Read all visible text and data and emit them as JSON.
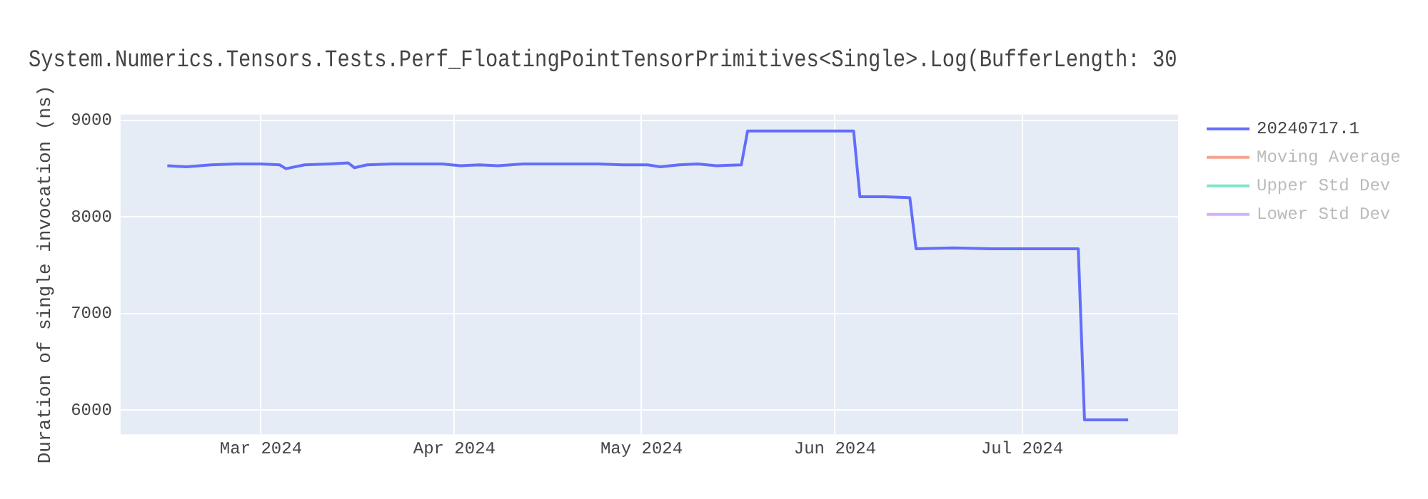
{
  "chart_data": {
    "type": "line",
    "title": "System.Numerics.Tensors.Tests.Perf_FloatingPointTensorPrimitives<Single>.Log(BufferLength: 30",
    "ylabel": "Duration of single invocation (ns)",
    "series": [
      {
        "name": "20240717.1",
        "color": "#636efa",
        "x": [
          "2024-02-15",
          "2024-02-18",
          "2024-02-22",
          "2024-02-26",
          "2024-03-01",
          "2024-03-04",
          "2024-03-05",
          "2024-03-08",
          "2024-03-12",
          "2024-03-15",
          "2024-03-16",
          "2024-03-18",
          "2024-03-22",
          "2024-03-26",
          "2024-03-30",
          "2024-04-02",
          "2024-04-05",
          "2024-04-08",
          "2024-04-12",
          "2024-04-16",
          "2024-04-20",
          "2024-04-24",
          "2024-04-28",
          "2024-05-02",
          "2024-05-04",
          "2024-05-07",
          "2024-05-10",
          "2024-05-13",
          "2024-05-17",
          "2024-05-18",
          "2024-05-22",
          "2024-05-27",
          "2024-06-01",
          "2024-06-04",
          "2024-06-05",
          "2024-06-09",
          "2024-06-13",
          "2024-06-14",
          "2024-06-20",
          "2024-06-26",
          "2024-07-01",
          "2024-07-05",
          "2024-07-10",
          "2024-07-11",
          "2024-07-15",
          "2024-07-18"
        ],
        "values": [
          8530,
          8520,
          8540,
          8550,
          8550,
          8540,
          8500,
          8540,
          8550,
          8560,
          8510,
          8540,
          8550,
          8550,
          8550,
          8530,
          8540,
          8530,
          8550,
          8550,
          8550,
          8550,
          8540,
          8540,
          8520,
          8540,
          8550,
          8530,
          8540,
          8890,
          8890,
          8890,
          8890,
          8890,
          8210,
          8210,
          8200,
          7670,
          7680,
          7670,
          7670,
          7670,
          7670,
          5900,
          5900,
          5900
        ]
      },
      {
        "name": "Moving Average",
        "color": "#f4a58f"
      },
      {
        "name": "Upper Std Dev",
        "color": "#7fe6c9"
      },
      {
        "name": "Lower Std Dev",
        "color": "#d3b0fc"
      }
    ],
    "xlim": [
      "2024-02-07T12:00",
      "2024-07-26"
    ],
    "xticks": [
      {
        "value": "2024-03-01",
        "label": "Mar 2024"
      },
      {
        "value": "2024-04-01",
        "label": "Apr 2024"
      },
      {
        "value": "2024-05-01",
        "label": "May 2024"
      },
      {
        "value": "2024-06-01",
        "label": "Jun 2024"
      },
      {
        "value": "2024-07-01",
        "label": "Jul 2024"
      }
    ],
    "ylim": [
      5750,
      9060
    ],
    "yticks": [
      6000,
      7000,
      8000,
      9000
    ],
    "grid": true,
    "legend": "top right",
    "marker": "none",
    "line_style": "solid"
  }
}
